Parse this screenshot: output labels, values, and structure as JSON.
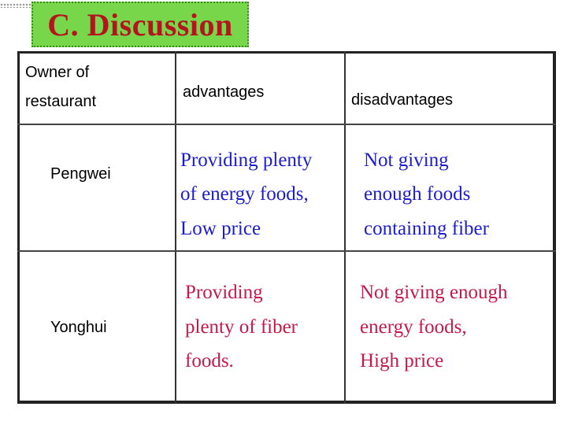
{
  "title": "C. Discussion",
  "colors": {
    "title_bg": "#78d64a",
    "title_text": "#b4141e",
    "pengwei_text": "#1b1bd0",
    "yonghui_text": "#c41a4a"
  },
  "table": {
    "headers": {
      "owner": [
        "Owner of",
        "restaurant"
      ],
      "advantages": "advantages",
      "disadvantages": "disadvantages"
    },
    "rows": [
      {
        "owner": "Pengwei",
        "advantages": [
          "Providing plenty",
          "of energy foods,",
          "Low price"
        ],
        "disadvantages": [
          "Not giving",
          "enough foods",
          "containing fiber"
        ]
      },
      {
        "owner": "Yonghui",
        "advantages": [
          "Providing",
          "plenty of fiber",
          "foods."
        ],
        "disadvantages": [
          "Not giving enough",
          "energy foods,",
          "High price"
        ]
      }
    ]
  }
}
